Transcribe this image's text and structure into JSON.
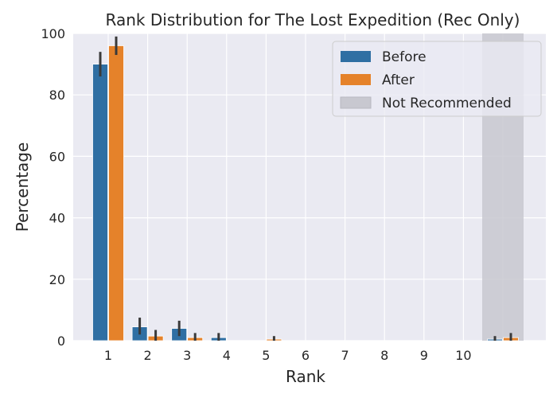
{
  "chart_data": {
    "type": "bar",
    "title": "Rank Distribution for The Lost Expedition (Rec Only)",
    "xlabel": "Rank",
    "ylabel": "Percentage",
    "ylim": [
      0,
      100
    ],
    "yticks": [
      0,
      20,
      40,
      60,
      80,
      100
    ],
    "grid": true,
    "legend_position": "top-right",
    "categories": [
      "1",
      "2",
      "3",
      "4",
      "5",
      "6",
      "7",
      "8",
      "9",
      "10",
      ""
    ],
    "series": [
      {
        "name": "Before",
        "color": "#2f6fa3",
        "values": [
          90,
          4.5,
          4,
          1,
          0,
          0,
          0,
          0,
          0,
          0,
          0.5
        ],
        "error_low": [
          86,
          2,
          1.5,
          0,
          0,
          0,
          0,
          0,
          0,
          0,
          0
        ],
        "error_high": [
          94,
          7.5,
          6.5,
          2.5,
          0,
          0,
          0,
          0,
          0,
          0,
          1.5
        ]
      },
      {
        "name": "After",
        "color": "#e5822a",
        "values": [
          96,
          1.5,
          1,
          0,
          0.5,
          0,
          0,
          0,
          0,
          0,
          1
        ],
        "error_low": [
          93,
          0,
          0,
          0,
          0,
          0,
          0,
          0,
          0,
          0,
          0
        ],
        "error_high": [
          99,
          3.5,
          2.5,
          0,
          1.5,
          0,
          0,
          0,
          0,
          0,
          2.5
        ]
      }
    ],
    "shaded_region": {
      "name": "Not Recommended",
      "category_index": 10,
      "color": "#c8c8d0"
    }
  }
}
